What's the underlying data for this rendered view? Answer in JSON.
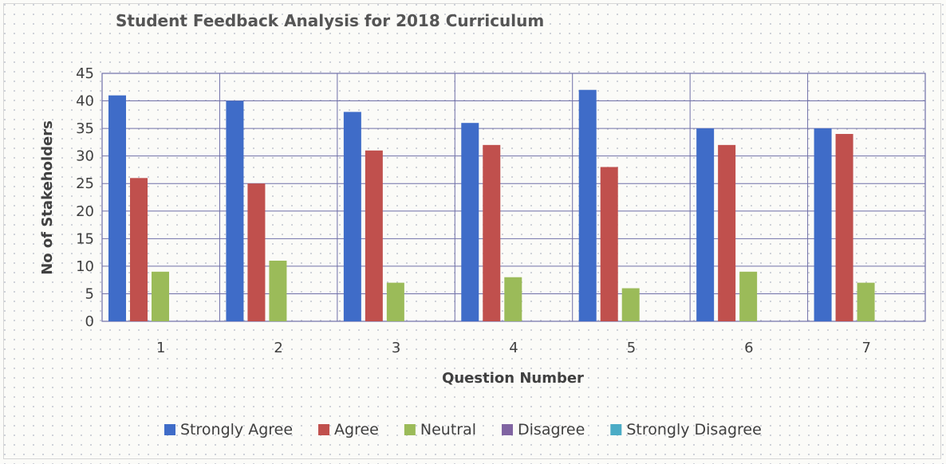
{
  "chart_data": {
    "type": "bar",
    "title": "Student Feedback Analysis for 2018 Curriculum",
    "xlabel": "Question Number",
    "ylabel": "No of Stakeholders",
    "categories": [
      "1",
      "2",
      "3",
      "4",
      "5",
      "6",
      "7"
    ],
    "ylim": [
      0,
      45
    ],
    "yticks": [
      0,
      5,
      10,
      15,
      20,
      25,
      30,
      35,
      40,
      45
    ],
    "grid": true,
    "legend_position": "bottom",
    "series": [
      {
        "name": "Strongly Agree",
        "color": "#3f6cc8",
        "values": [
          41,
          40,
          38,
          36,
          42,
          35,
          35
        ]
      },
      {
        "name": "Agree",
        "color": "#c0504d",
        "values": [
          26,
          25,
          31,
          32,
          28,
          32,
          34
        ]
      },
      {
        "name": "Neutral",
        "color": "#9bbb59",
        "values": [
          9,
          11,
          7,
          8,
          6,
          9,
          7
        ]
      },
      {
        "name": "Disagree",
        "color": "#8064a2",
        "values": [
          0,
          0,
          0,
          0,
          0,
          0,
          0
        ]
      },
      {
        "name": "Strongly Disagree",
        "color": "#4bacc6",
        "values": [
          0,
          0,
          0,
          0,
          0,
          0,
          0
        ]
      }
    ]
  }
}
